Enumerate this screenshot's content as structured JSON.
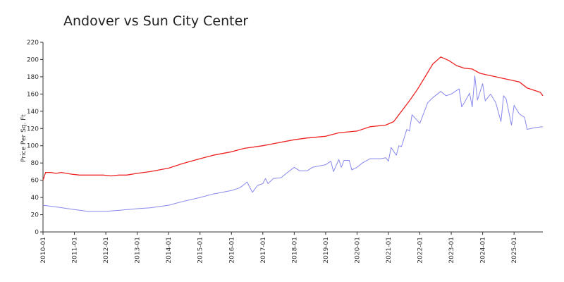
{
  "chart_data": {
    "type": "line",
    "title": "Andover vs Sun City Center",
    "xlabel": "",
    "ylabel": "Price Per Sq. Ft",
    "ylim": [
      0,
      220
    ],
    "yticks": [
      0,
      20,
      40,
      60,
      80,
      100,
      120,
      140,
      160,
      180,
      200,
      220
    ],
    "xlim": [
      "2010-01",
      "2025-12"
    ],
    "xticks": [
      "2010-01",
      "2011-01",
      "2012-01",
      "2013-01",
      "2014-01",
      "2015-01",
      "2016-01",
      "2017-01",
      "2018-01",
      "2019-01",
      "2020-01",
      "2021-01",
      "2022-01",
      "2023-01",
      "2024-01",
      "2025-01"
    ],
    "grid": false,
    "legend": "none",
    "series": [
      {
        "color": "#ee2222",
        "points": [
          [
            "2010-01",
            60
          ],
          [
            "2010-02",
            69
          ],
          [
            "2010-04",
            69
          ],
          [
            "2010-06",
            68
          ],
          [
            "2010-08",
            69
          ],
          [
            "2010-10",
            68
          ],
          [
            "2010-12",
            67
          ],
          [
            "2011-03",
            66
          ],
          [
            "2011-06",
            66
          ],
          [
            "2011-09",
            66
          ],
          [
            "2011-12",
            66
          ],
          [
            "2012-03",
            65
          ],
          [
            "2012-06",
            66
          ],
          [
            "2012-09",
            66
          ],
          [
            "2013-01",
            68
          ],
          [
            "2013-06",
            70
          ],
          [
            "2014-01",
            74
          ],
          [
            "2014-06",
            79
          ],
          [
            "2015-01",
            85
          ],
          [
            "2015-06",
            89
          ],
          [
            "2016-01",
            93
          ],
          [
            "2016-06",
            97
          ],
          [
            "2017-01",
            100
          ],
          [
            "2017-06",
            103
          ],
          [
            "2018-01",
            107
          ],
          [
            "2018-06",
            109
          ],
          [
            "2019-01",
            111
          ],
          [
            "2019-06",
            115
          ],
          [
            "2020-01",
            117
          ],
          [
            "2020-06",
            122
          ],
          [
            "2020-12",
            124
          ],
          [
            "2021-03",
            128
          ],
          [
            "2021-06",
            140
          ],
          [
            "2021-09",
            152
          ],
          [
            "2021-12",
            165
          ],
          [
            "2022-03",
            180
          ],
          [
            "2022-06",
            195
          ],
          [
            "2022-09",
            203
          ],
          [
            "2022-12",
            199
          ],
          [
            "2023-03",
            193
          ],
          [
            "2023-06",
            190
          ],
          [
            "2023-09",
            189
          ],
          [
            "2023-12",
            184
          ],
          [
            "2024-03",
            182
          ],
          [
            "2024-06",
            180
          ],
          [
            "2024-09",
            178
          ],
          [
            "2024-12",
            176
          ],
          [
            "2025-03",
            174
          ],
          [
            "2025-06",
            167
          ],
          [
            "2025-09",
            164
          ],
          [
            "2025-11",
            162
          ],
          [
            "2025-12",
            158
          ]
        ]
      },
      {
        "color": "#8888ee",
        "points": [
          [
            "2010-01",
            31
          ],
          [
            "2010-06",
            29
          ],
          [
            "2011-01",
            26
          ],
          [
            "2011-06",
            24
          ],
          [
            "2012-01",
            24
          ],
          [
            "2012-06",
            25
          ],
          [
            "2013-01",
            27
          ],
          [
            "2013-06",
            28
          ],
          [
            "2014-01",
            31
          ],
          [
            "2014-06",
            35
          ],
          [
            "2015-01",
            40
          ],
          [
            "2015-06",
            44
          ],
          [
            "2016-01",
            48
          ],
          [
            "2016-04",
            51
          ],
          [
            "2016-05",
            53
          ],
          [
            "2016-07",
            58
          ],
          [
            "2016-09",
            46
          ],
          [
            "2016-11",
            54
          ],
          [
            "2017-01",
            56
          ],
          [
            "2017-02",
            62
          ],
          [
            "2017-03",
            56
          ],
          [
            "2017-05",
            62
          ],
          [
            "2017-08",
            63
          ],
          [
            "2017-10",
            68
          ],
          [
            "2018-01",
            75
          ],
          [
            "2018-03",
            71
          ],
          [
            "2018-06",
            71
          ],
          [
            "2018-08",
            75
          ],
          [
            "2019-01",
            78
          ],
          [
            "2019-03",
            82
          ],
          [
            "2019-04",
            70
          ],
          [
            "2019-06",
            84
          ],
          [
            "2019-07",
            75
          ],
          [
            "2019-08",
            83
          ],
          [
            "2019-10",
            83
          ],
          [
            "2019-11",
            72
          ],
          [
            "2020-01",
            75
          ],
          [
            "2020-03",
            80
          ],
          [
            "2020-06",
            85
          ],
          [
            "2020-10",
            85
          ],
          [
            "2020-12",
            86
          ],
          [
            "2021-01",
            82
          ],
          [
            "2021-02",
            98
          ],
          [
            "2021-04",
            89
          ],
          [
            "2021-05",
            100
          ],
          [
            "2021-06",
            99
          ],
          [
            "2021-08",
            119
          ],
          [
            "2021-09",
            117
          ],
          [
            "2021-10",
            136
          ],
          [
            "2022-01",
            126
          ],
          [
            "2022-04",
            150
          ],
          [
            "2022-06",
            156
          ],
          [
            "2022-09",
            163
          ],
          [
            "2022-11",
            158
          ],
          [
            "2023-01",
            160
          ],
          [
            "2023-04",
            166
          ],
          [
            "2023-05",
            145
          ],
          [
            "2023-06",
            150
          ],
          [
            "2023-08",
            161
          ],
          [
            "2023-09",
            145
          ],
          [
            "2023-10",
            181
          ],
          [
            "2023-11",
            153
          ],
          [
            "2024-01",
            172
          ],
          [
            "2024-02",
            152
          ],
          [
            "2024-04",
            160
          ],
          [
            "2024-06",
            150
          ],
          [
            "2024-08",
            128
          ],
          [
            "2024-09",
            158
          ],
          [
            "2024-10",
            154
          ],
          [
            "2024-12",
            124
          ],
          [
            "2025-01",
            147
          ],
          [
            "2025-03",
            137
          ],
          [
            "2025-05",
            133
          ],
          [
            "2025-06",
            119
          ],
          [
            "2025-09",
            121
          ],
          [
            "2025-12",
            122
          ]
        ]
      }
    ]
  }
}
